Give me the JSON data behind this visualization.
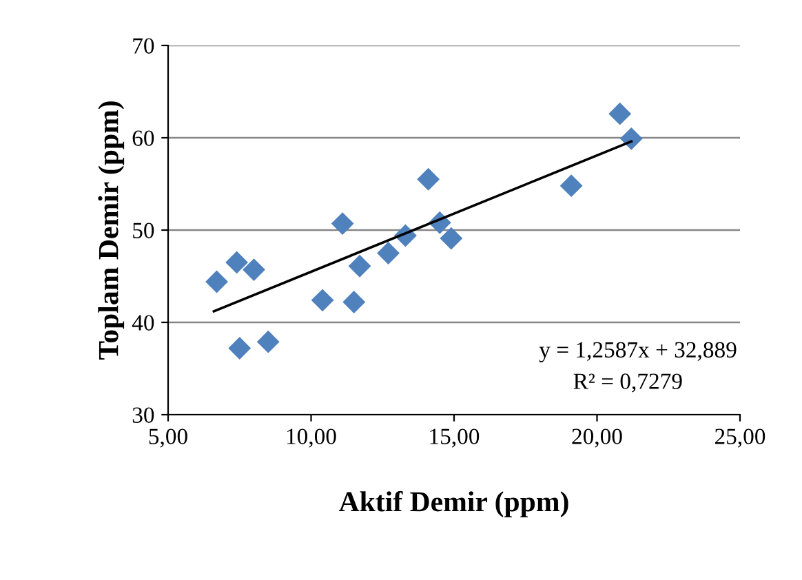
{
  "chart_data": {
    "type": "scatter",
    "xlabel": "Aktif Demir (ppm)",
    "ylabel": "Toplam Demir (ppm)",
    "xlim": [
      5,
      25
    ],
    "ylim": [
      30,
      70
    ],
    "xticks": [
      {
        "value": 5,
        "label": "5,00"
      },
      {
        "value": 10,
        "label": "10,00"
      },
      {
        "value": 15,
        "label": "15,00"
      },
      {
        "value": 20,
        "label": "20,00"
      },
      {
        "value": 25,
        "label": "25,00"
      }
    ],
    "yticks": [
      30,
      40,
      50,
      60,
      70
    ],
    "grid": "y",
    "legend": false,
    "marker": "diamond",
    "series": [
      {
        "color": "#4f81bd",
        "x": [
          6.7,
          7.4,
          8.0,
          7.5,
          8.5,
          10.4,
          11.1,
          11.5,
          11.7,
          12.7,
          13.3,
          14.1,
          14.5,
          14.9,
          19.1,
          20.8,
          21.2
        ],
        "values": [
          44.4,
          46.5,
          45.7,
          37.2,
          37.9,
          42.4,
          50.7,
          42.2,
          46.1,
          47.5,
          49.4,
          55.5,
          50.8,
          49.1,
          54.8,
          62.6,
          59.9
        ]
      },
      {
        "type": "line",
        "color": "#000000",
        "marker": "none",
        "line_style": "solid",
        "x": [
          6.6,
          21.2
        ],
        "values": [
          41.2,
          59.6
        ]
      }
    ],
    "annotations": [
      "y = 1,2587x + 32,889",
      "R² = 0,7279"
    ]
  }
}
